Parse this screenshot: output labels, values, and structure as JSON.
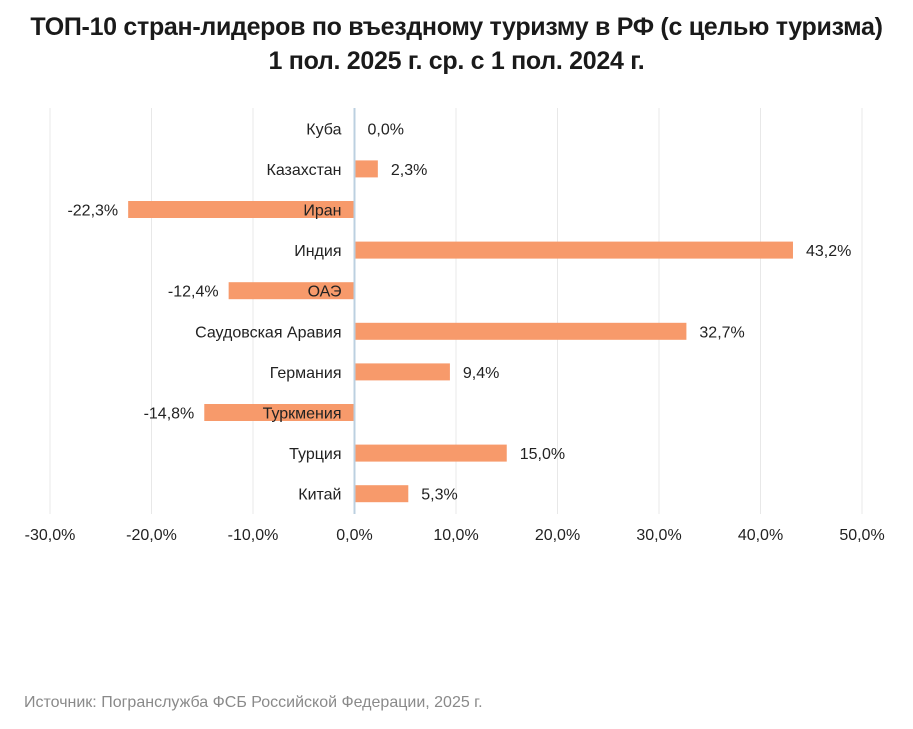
{
  "title_line1": "ТОП-10 стран-лидеров по въездному туризму в РФ (с целью туризма)",
  "title_line2": "1 пол. 2025 г. ср. с 1 пол. 2024 г.",
  "source": "Источник: Погранслужба ФСБ Российской Федерации, 2025 г.",
  "chart_data": {
    "type": "bar",
    "orientation": "horizontal",
    "categories": [
      "Куба",
      "Казахстан",
      "Иран",
      "Индия",
      "ОАЭ",
      "Саудовская Аравия",
      "Германия",
      "Туркмения",
      "Турция",
      "Китай"
    ],
    "values": [
      0.0,
      2.3,
      -22.3,
      43.2,
      -12.4,
      32.7,
      9.4,
      -14.8,
      15.0,
      5.3
    ],
    "value_labels": [
      "0,0%",
      "2,3%",
      "-22,3%",
      "43,2%",
      "-12,4%",
      "32,7%",
      "9,4%",
      "-14,8%",
      "15,0%",
      "5,3%"
    ],
    "x_ticks": [
      -30,
      -20,
      -10,
      0,
      10,
      20,
      30,
      40,
      50
    ],
    "x_tick_labels": [
      "-30,0%",
      "-20,0%",
      "-10,0%",
      "0,0%",
      "10,0%",
      "20,0%",
      "30,0%",
      "40,0%",
      "50,0%"
    ],
    "xlim": [
      -30,
      50
    ],
    "grid": "vertical",
    "bar_color": "#f79a6b",
    "axis_color": "#bcd0e0",
    "grid_color": "#e8e8e8"
  }
}
